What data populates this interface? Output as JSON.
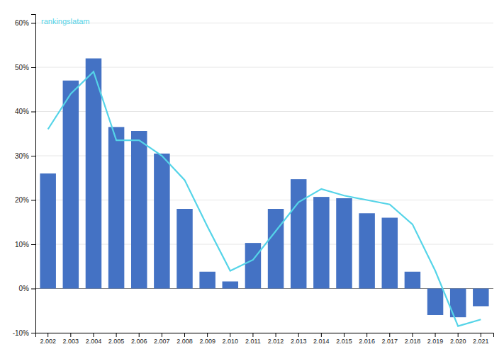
{
  "chart_data": {
    "type": "bar",
    "categories": [
      "2.002",
      "2.003",
      "2.004",
      "2.005",
      "2.006",
      "2.007",
      "2.008",
      "2.009",
      "2.010",
      "2.011",
      "2.012",
      "2.013",
      "2.014",
      "2.015",
      "2.016",
      "2.017",
      "2.018",
      "2.019",
      "2.020",
      "2.021"
    ],
    "series": [
      {
        "type": "bar",
        "color": "#4472C4",
        "values": [
          0.26,
          0.47,
          0.52,
          0.365,
          0.356,
          0.305,
          0.18,
          0.038,
          0.016,
          0.103,
          0.18,
          0.247,
          0.207,
          0.204,
          0.17,
          0.16,
          0.038,
          -0.06,
          -0.065,
          -0.04
        ]
      },
      {
        "type": "line",
        "color": "#55d4e8",
        "values": [
          0.36,
          0.44,
          0.49,
          0.335,
          0.335,
          0.3,
          0.245,
          0.14,
          0.04,
          0.065,
          0.13,
          0.195,
          0.225,
          0.21,
          0.2,
          0.19,
          0.145,
          0.04,
          -0.085,
          -0.07
        ]
      }
    ],
    "annotation": "rankingslatam",
    "ylim": [
      -0.1,
      0.62
    ],
    "yticks": [
      {
        "value": -0.1,
        "label": "-10%"
      },
      {
        "value": 0.0,
        "label": "0%"
      },
      {
        "value": 0.1,
        "label": "10%"
      },
      {
        "value": 0.2,
        "label": "20%"
      },
      {
        "value": 0.3,
        "label": "30%"
      },
      {
        "value": 0.4,
        "label": "40%"
      },
      {
        "value": 0.5,
        "label": "50%"
      },
      {
        "value": 0.6,
        "label": "60%"
      }
    ],
    "grid": true
  }
}
